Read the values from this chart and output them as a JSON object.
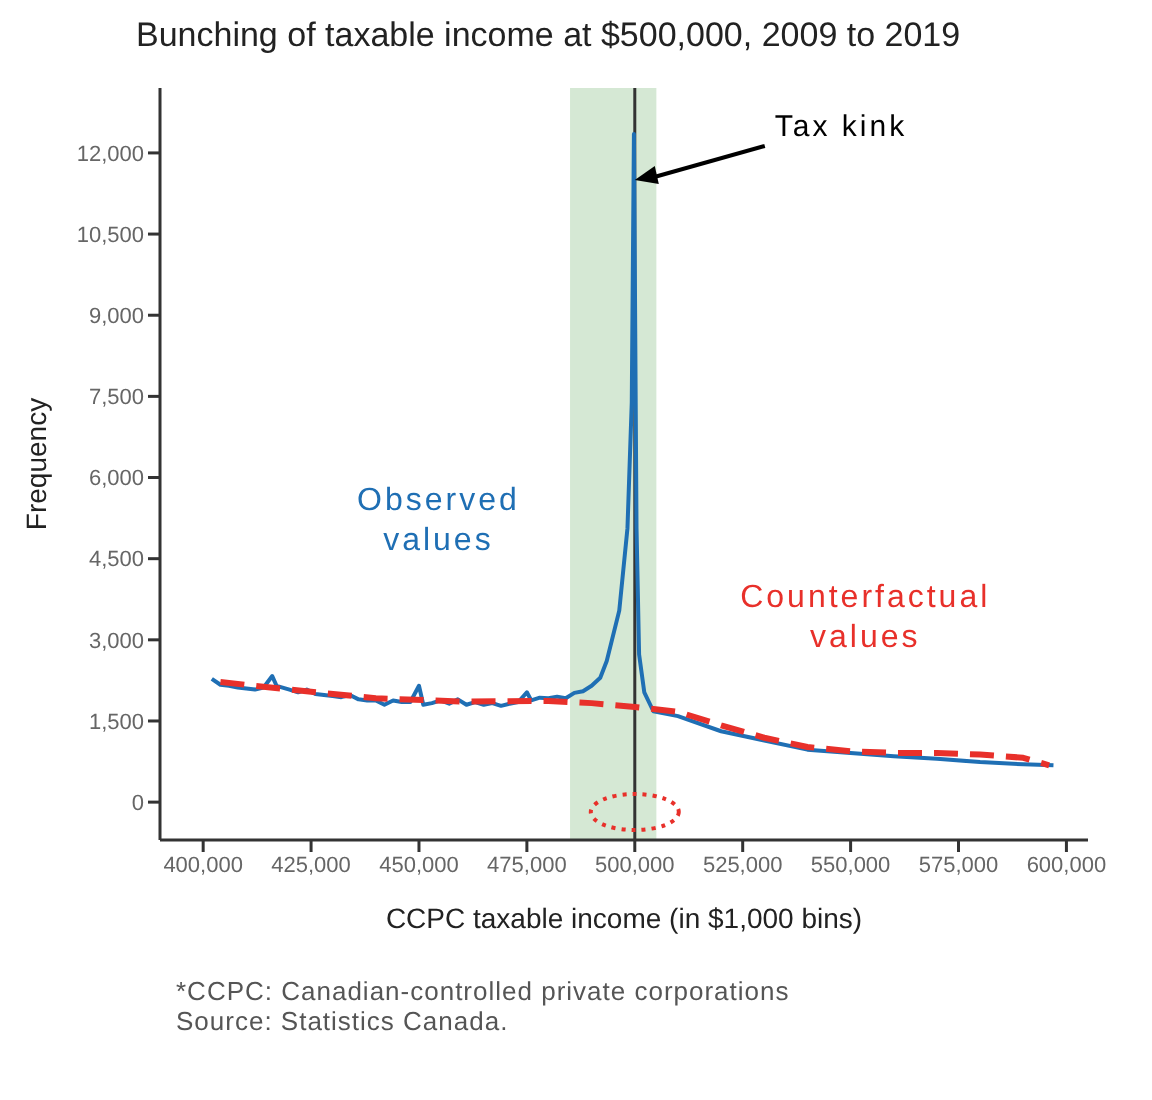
{
  "chart_data": {
    "type": "line",
    "title": "Bunching of taxable income at $500,000, 2009 to 2019",
    "xlabel": "CCPC taxable income (in $1,000 bins)",
    "ylabel": "Frequency",
    "xlim": [
      390000,
      605000
    ],
    "xticks": [
      {
        "value": 400000,
        "label": "400,000"
      },
      {
        "value": 425000,
        "label": "425,000"
      },
      {
        "value": 450000,
        "label": "450,000"
      },
      {
        "value": 475000,
        "label": "475,000"
      },
      {
        "value": 500000,
        "label": "500,000"
      },
      {
        "value": 525000,
        "label": "525,000"
      },
      {
        "value": 550000,
        "label": "550,000"
      },
      {
        "value": 575000,
        "label": "575,000"
      },
      {
        "value": 600000,
        "label": "600,000"
      }
    ],
    "ylim": [
      -700,
      13200
    ],
    "yticks": [
      0,
      {
        "value": 1500,
        "label": "1,500"
      },
      {
        "value": 3000,
        "label": "3,000"
      },
      {
        "value": 4500,
        "label": "4,500"
      },
      {
        "value": 6000,
        "label": "6,000"
      },
      {
        "value": 7500,
        "label": "7,500"
      },
      {
        "value": 9000,
        "label": "9,000"
      },
      {
        "value": 10500,
        "label": "10,500"
      },
      {
        "value": 12000,
        "label": "12,000"
      }
    ],
    "marker": "none",
    "series": [
      {
        "name": "Observed values",
        "color": "#1f6fb4",
        "line_style": "solid",
        "x": [
          402000,
          404000,
          406000,
          408000,
          410000,
          412000,
          414000,
          416000,
          417000,
          420000,
          422000,
          424000,
          426000,
          428000,
          430000,
          432000,
          434000,
          436000,
          438000,
          440000,
          442000,
          444000,
          446000,
          448000,
          450000,
          451000,
          453000,
          455000,
          457000,
          459000,
          461000,
          463000,
          465000,
          467000,
          469000,
          471000,
          473000,
          475000,
          476000,
          478000,
          480000,
          482000,
          484000,
          486000,
          488000,
          490000,
          492000,
          493500,
          496400,
          498300,
          499300,
          499800,
          500400,
          501000,
          502200,
          504300,
          510000,
          520000,
          530000,
          540000,
          550000,
          560000,
          570000,
          580000,
          590000,
          597000
        ],
        "values": [
          2280,
          2170,
          2150,
          2120,
          2100,
          2080,
          2120,
          2330,
          2150,
          2080,
          2030,
          2080,
          2000,
          1980,
          1960,
          1940,
          1980,
          1900,
          1880,
          1880,
          1800,
          1880,
          1850,
          1850,
          2150,
          1800,
          1830,
          1880,
          1820,
          1900,
          1800,
          1850,
          1800,
          1830,
          1780,
          1820,
          1850,
          2030,
          1880,
          1930,
          1920,
          1950,
          1920,
          2020,
          2050,
          2150,
          2300,
          2610,
          3540,
          5060,
          7390,
          12350,
          5060,
          2730,
          2030,
          1680,
          1590,
          1310,
          1140,
          970,
          910,
          850,
          800,
          740,
          700,
          680
        ]
      },
      {
        "name": "Counterfactual values",
        "color": "#e8302a",
        "line_style": "dashed",
        "x": [
          404000,
          420000,
          440000,
          460000,
          480000,
          490000,
          500000,
          510000,
          520000,
          530000,
          540000,
          550000,
          560000,
          570000,
          580000,
          590000,
          596000
        ],
        "values": [
          2220,
          2080,
          1920,
          1860,
          1870,
          1830,
          1760,
          1670,
          1420,
          1190,
          1020,
          940,
          910,
          910,
          880,
          820,
          680
        ]
      }
    ],
    "bands": [
      {
        "axis": "x",
        "from": 485000,
        "to": 505000,
        "color": "#d5e8d4"
      }
    ],
    "ref_lines": [
      {
        "axis": "x",
        "value": 500000,
        "color": "#333333",
        "line_style": "solid"
      }
    ],
    "annotations": [
      {
        "text": "Tax kink",
        "x": 500000,
        "y": 11500
      },
      "*CCPC: Canadian-controlled private corporations",
      "Source: Statistics Canada."
    ]
  }
}
